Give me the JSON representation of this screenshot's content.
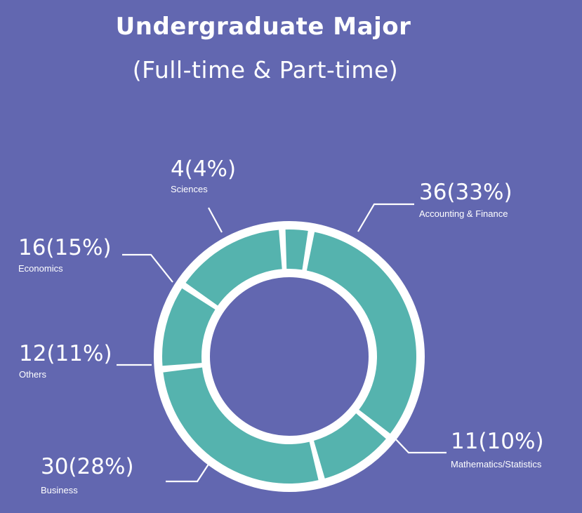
{
  "chart_data": {
    "type": "pie",
    "title": "Undergraduate Major",
    "subtitle": "(Full-time & Part-time)",
    "categories": [
      "Accounting & Finance",
      "Mathematics/Statistics",
      "Business",
      "Others",
      "Economics",
      "Sciences"
    ],
    "values": [
      36,
      11,
      30,
      12,
      16,
      4
    ],
    "value_labels": [
      "36(33%)",
      "11(10%)",
      "30(28%)",
      "12(11%)",
      "16(15%)",
      "4(4%)"
    ],
    "colors": {
      "background": "#6267b0",
      "slice": "#55b3ae",
      "ring": "#ffffff",
      "text": "#ffffff"
    }
  }
}
